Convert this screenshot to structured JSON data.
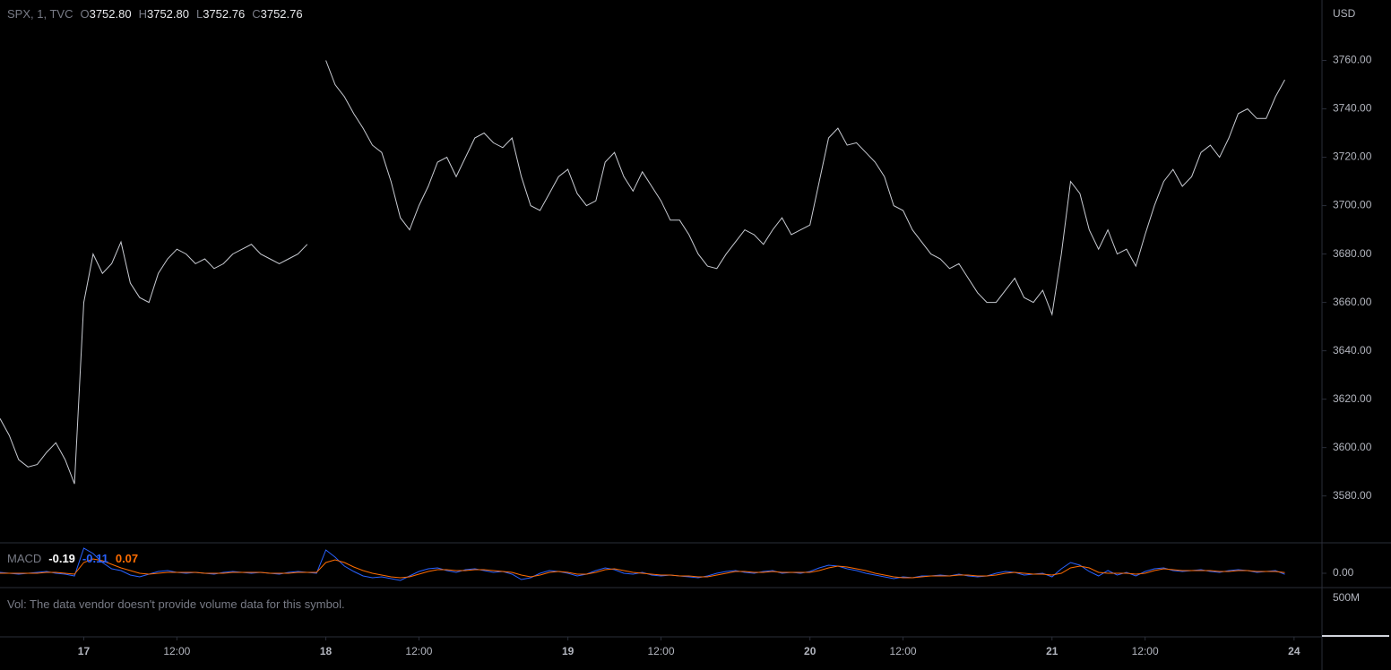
{
  "chart_data": [
    {
      "type": "line",
      "symbol": "SPX, 1, TVC",
      "ohlc": [
        {
          "key": "O",
          "value": {
            "value": 3752.8,
            "label": "3752.80"
          }
        },
        {
          "key": "H",
          "value": {
            "value": 3752.8,
            "label": "3752.80"
          }
        },
        {
          "key": "L",
          "value": {
            "value": 3752.76,
            "label": "3752.76"
          }
        },
        {
          "key": "C",
          "value": {
            "value": 3752.76,
            "label": "3752.76"
          }
        }
      ],
      "currency": "USD",
      "color": "#c8cbd2",
      "values": [
        3612,
        3605,
        3595,
        3592,
        3593,
        3598,
        3602,
        3595,
        3585,
        3660,
        3680,
        3672,
        3676,
        3685,
        3668,
        3662,
        3660,
        3672,
        3678,
        3682,
        3680,
        3676,
        3678,
        3674,
        3676,
        3680,
        3682,
        3684,
        3680,
        3678,
        3676,
        3678,
        3680,
        3684,
        null,
        3760,
        3750,
        3745,
        3738,
        3732,
        3725,
        3722,
        3710,
        3695,
        3690,
        3700,
        3708,
        3718,
        3720,
        3712,
        3720,
        3728,
        3730,
        3726,
        3724,
        3728,
        3712,
        3700,
        3698,
        3705,
        3712,
        3715,
        3705,
        3700,
        3702,
        3718,
        3722,
        3712,
        3706,
        3714,
        3708,
        3702,
        3694,
        3694,
        3688,
        3680,
        3675,
        3674,
        3680,
        3685,
        3690,
        3688,
        3684,
        3690,
        3695,
        3688,
        3690,
        3692,
        3710,
        3728,
        3732,
        3725,
        3726,
        3722,
        3718,
        3712,
        3700,
        3698,
        3690,
        3685,
        3680,
        3678,
        3674,
        3676,
        3670,
        3664,
        3660,
        3660,
        3665,
        3670,
        3662,
        3660,
        3665,
        3655,
        3680,
        3710,
        3705,
        3690,
        3682,
        3690,
        3680,
        3682,
        3675,
        3688,
        3700,
        3710,
        3715,
        3708,
        3712,
        3722,
        3725,
        3720,
        3728,
        3738,
        3740,
        3736,
        3736,
        3745,
        3752
      ],
      "xlim": [
        0,
        142
      ],
      "xticks": [
        {
          "value": 9,
          "label": "17"
        },
        {
          "value": 19,
          "label": "12:00"
        },
        {
          "value": 35,
          "label": "18"
        },
        {
          "value": 45,
          "label": "12:00"
        },
        {
          "value": 61,
          "label": "19"
        },
        {
          "value": 71,
          "label": "12:00"
        },
        {
          "value": 87,
          "label": "20"
        },
        {
          "value": 97,
          "label": "12:00"
        },
        {
          "value": 113,
          "label": "21"
        },
        {
          "value": 123,
          "label": "12:00"
        },
        {
          "value": 139,
          "label": "24"
        }
      ],
      "ylim": [
        3561,
        3785
      ],
      "yticks": [
        {
          "value": 3580,
          "label": "3580.00"
        },
        {
          "value": 3600,
          "label": "3600.00"
        },
        {
          "value": 3620,
          "label": "3620.00"
        },
        {
          "value": 3640,
          "label": "3640.00"
        },
        {
          "value": 3660,
          "label": "3660.00"
        },
        {
          "value": 3680,
          "label": "3680.00"
        },
        {
          "value": 3700,
          "label": "3700.00"
        },
        {
          "value": 3720,
          "label": "3720.00"
        },
        {
          "value": 3740,
          "label": "3740.00"
        },
        {
          "value": 3760,
          "label": "3760.00"
        }
      ]
    },
    {
      "type": "line",
      "title": "MACD",
      "readout": [
        {
          "value": -0.19,
          "color": "#ffffff"
        },
        {
          "value": -0.11,
          "color": "#2962ff"
        },
        {
          "value": 0.07,
          "color": "#ff6d00"
        }
      ],
      "series": [
        {
          "color": "#2962ff",
          "values": [
            0.1,
            0,
            -0.1,
            0,
            0.1,
            0.2,
            0,
            -0.1,
            -0.3,
            2.8,
            2.2,
            1.2,
            0.5,
            0.3,
            -0.2,
            -0.4,
            -0.1,
            0.2,
            0.3,
            0.1,
            0,
            0.1,
            0,
            -0.1,
            0.1,
            0.2,
            0.1,
            0,
            0.1,
            0,
            -0.1,
            0.1,
            0.2,
            0.1,
            0,
            2.6,
            1.8,
            0.8,
            0.2,
            -0.3,
            -0.5,
            -0.4,
            -0.6,
            -0.8,
            -0.3,
            0.2,
            0.5,
            0.6,
            0.3,
            0.1,
            0.4,
            0.5,
            0.3,
            0.1,
            0.2,
            -0.1,
            -0.7,
            -0.5,
            0,
            0.3,
            0.2,
            0,
            -0.3,
            -0.1,
            0.3,
            0.6,
            0.4,
            0,
            -0.1,
            0.1,
            -0.2,
            -0.3,
            -0.2,
            -0.3,
            -0.4,
            -0.5,
            -0.3,
            0,
            0.2,
            0.3,
            0.1,
            0,
            0.2,
            0.3,
            0,
            0.1,
            0,
            0.2,
            0.6,
            0.9,
            0.8,
            0.5,
            0.3,
            0,
            -0.2,
            -0.4,
            -0.6,
            -0.4,
            -0.5,
            -0.3,
            -0.3,
            -0.2,
            -0.3,
            -0.1,
            -0.3,
            -0.4,
            -0.3,
            0,
            0.2,
            0.1,
            -0.2,
            -0.1,
            0,
            -0.4,
            0.5,
            1.2,
            0.9,
            0.2,
            -0.3,
            0.3,
            -0.2,
            0.1,
            -0.3,
            0.2,
            0.5,
            0.6,
            0.3,
            0.2,
            0.3,
            0.4,
            0.2,
            0.1,
            0.3,
            0.4,
            0.3,
            0.1,
            0.2,
            0.3,
            -0.11
          ]
        },
        {
          "color": "#ff6d00",
          "values": [
            0,
            0,
            0,
            0,
            0,
            0.1,
            0.1,
            0,
            -0.1,
            1.2,
            1.6,
            1.4,
            1.0,
            0.6,
            0.3,
            0,
            -0.1,
            0,
            0.1,
            0.1,
            0.1,
            0.1,
            0,
            0,
            0,
            0.1,
            0.1,
            0.1,
            0.1,
            0,
            0,
            0,
            0.1,
            0.1,
            0.1,
            1.2,
            1.5,
            1.2,
            0.7,
            0.3,
            0,
            -0.2,
            -0.4,
            -0.5,
            -0.4,
            -0.1,
            0.2,
            0.4,
            0.4,
            0.3,
            0.3,
            0.4,
            0.4,
            0.3,
            0.2,
            0.1,
            -0.2,
            -0.4,
            -0.2,
            0.1,
            0.2,
            0.1,
            -0.1,
            -0.1,
            0.1,
            0.4,
            0.5,
            0.3,
            0.1,
            0,
            -0.1,
            -0.2,
            -0.2,
            -0.3,
            -0.3,
            -0.4,
            -0.4,
            -0.2,
            0,
            0.2,
            0.2,
            0.1,
            0.1,
            0.2,
            0.1,
            0.1,
            0.1,
            0.1,
            0.3,
            0.6,
            0.8,
            0.7,
            0.5,
            0.3,
            0,
            -0.2,
            -0.4,
            -0.5,
            -0.5,
            -0.4,
            -0.3,
            -0.3,
            -0.3,
            -0.2,
            -0.2,
            -0.3,
            -0.3,
            -0.2,
            0,
            0.1,
            0,
            -0.1,
            -0.1,
            -0.2,
            0,
            0.6,
            0.8,
            0.6,
            0.1,
            0,
            0,
            0,
            -0.1,
            0,
            0.3,
            0.5,
            0.4,
            0.3,
            0.3,
            0.3,
            0.3,
            0.2,
            0.2,
            0.3,
            0.3,
            0.2,
            0.2,
            0.2,
            0.07
          ]
        }
      ],
      "xlim": [
        0,
        142
      ],
      "ylim": [
        -1.5,
        3.3
      ],
      "yticks": [
        {
          "value": 0,
          "label": "0.00"
        }
      ]
    }
  ],
  "volume": {
    "text": "Vol: The data vendor doesn't provide volume data for this symbol.",
    "axis_label": "500M"
  }
}
